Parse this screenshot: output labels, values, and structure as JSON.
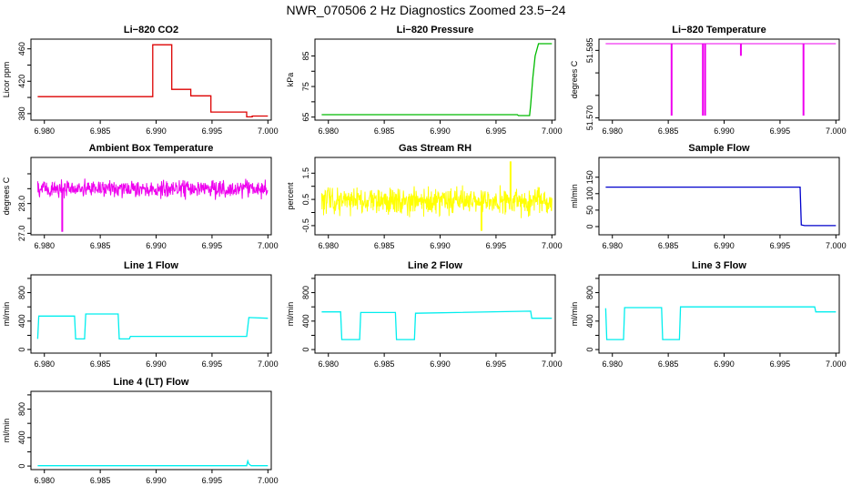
{
  "page_title": "NWR_070506  2 Hz Diagnostics Zoomed 23.5−24",
  "chart_data": [
    {
      "type": "line",
      "title": "Li−820 CO2",
      "xlabel": "",
      "ylabel": "Licor ppm",
      "color": "#dd0000",
      "xlim": [
        6.9788,
        7.0003
      ],
      "ylim": [
        372,
        472
      ],
      "xticks": [
        "6.980",
        "6.985",
        "6.990",
        "6.995",
        "7.000"
      ],
      "xtick_values": [
        6.98,
        6.985,
        6.99,
        6.995,
        7.0
      ],
      "yticks": [
        "380",
        "420",
        "460"
      ],
      "ytick_values": [
        380,
        420,
        460
      ],
      "yticks_minor": [
        "400",
        "440"
      ],
      "ytick_minor_values": [
        400,
        440
      ],
      "series": [
        {
          "x": [
            6.9794,
            6.9897,
            6.9897,
            6.9914,
            6.9914,
            6.9931,
            6.9931,
            6.9949,
            6.9949,
            6.9981,
            6.9981,
            6.9986,
            6.9986,
            7.0
          ],
          "y": [
            401,
            401,
            465,
            465,
            410,
            410,
            402,
            402,
            382,
            382,
            376,
            376,
            377,
            377
          ]
        }
      ]
    },
    {
      "type": "line",
      "title": "Li−820 Pressure",
      "xlabel": "",
      "ylabel": "kPa",
      "color": "#00bb00",
      "xlim": [
        6.9788,
        7.0003
      ],
      "ylim": [
        64,
        90.5
      ],
      "xticks": [
        "6.980",
        "6.985",
        "6.990",
        "6.995",
        "7.000"
      ],
      "xtick_values": [
        6.98,
        6.985,
        6.99,
        6.995,
        7.0
      ],
      "yticks": [
        "65",
        "75",
        "85"
      ],
      "ytick_values": [
        65,
        75,
        85
      ],
      "yticks_minor": [
        "70",
        "80"
      ],
      "ytick_minor_values": [
        70,
        80
      ],
      "series": [
        {
          "x": [
            6.9794,
            6.9969,
            6.997,
            6.998,
            6.9981,
            6.9983,
            6.9985,
            6.9988,
            7.0
          ],
          "y": [
            65.8,
            65.8,
            65.5,
            65.5,
            69,
            78,
            85,
            89,
            89
          ]
        }
      ]
    },
    {
      "type": "line",
      "title": "Li−820 Temperature",
      "xlabel": "",
      "ylabel": "degrees C",
      "color": "#ee00ee",
      "xlim": [
        6.9788,
        7.0003
      ],
      "ylim": [
        51.5695,
        51.5875
      ],
      "xticks": [
        "6.980",
        "6.985",
        "6.990",
        "6.995",
        "7.000"
      ],
      "xtick_values": [
        6.98,
        6.985,
        6.99,
        6.995,
        7.0
      ],
      "yticks": [
        "51.570",
        "51.585"
      ],
      "ytick_values": [
        51.57,
        51.585
      ],
      "yticks_minor": [
        "51.575",
        "51.580"
      ],
      "ytick_minor_values": [
        51.575,
        51.58
      ],
      "baseline": 51.5865,
      "spikes": [
        {
          "x": 6.9853,
          "y": 51.5705
        },
        {
          "x": 6.9881,
          "y": 51.5705
        },
        {
          "x": 6.9883,
          "y": 51.5705
        },
        {
          "x": 6.9915,
          "y": 51.5838
        },
        {
          "x": 6.9971,
          "y": 51.5705
        }
      ]
    },
    {
      "type": "line",
      "title": "Ambient Box Temperature",
      "xlabel": "",
      "ylabel": "degrees C",
      "color": "#ee00ee",
      "xlim": [
        6.9788,
        7.0003
      ],
      "ylim": [
        26.95,
        29.55
      ],
      "xticks": [
        "6.980",
        "6.985",
        "6.990",
        "6.995",
        "7.000"
      ],
      "xtick_values": [
        6.98,
        6.985,
        6.99,
        6.995,
        7.0
      ],
      "yticks": [
        "27.0",
        "28.0"
      ],
      "ytick_values": [
        27.0,
        28.0
      ],
      "yticks_minor": [
        "27.5",
        "28.5",
        "29.0"
      ],
      "ytick_minor_values": [
        27.5,
        28.5,
        29.0
      ],
      "noise": {
        "x_start": 6.9794,
        "x_end": 7.0,
        "mean": 28.5,
        "amplitude": 0.45
      },
      "spikes": [
        {
          "x": 6.9816,
          "y": 27.05
        }
      ]
    },
    {
      "type": "line",
      "title": "Gas Stream RH",
      "xlabel": "",
      "ylabel": "percent",
      "color": "#ffff00",
      "xlim": [
        6.9788,
        7.0003
      ],
      "ylim": [
        -0.85,
        2.1
      ],
      "xticks": [
        "6.980",
        "6.985",
        "6.990",
        "6.995",
        "7.000"
      ],
      "xtick_values": [
        6.98,
        6.985,
        6.99,
        6.995,
        7.0
      ],
      "yticks": [
        "-0.5",
        "0.5",
        "1.5"
      ],
      "ytick_values": [
        -0.5,
        0.5,
        1.5
      ],
      "yticks_minor": [
        "0.0",
        "1.0"
      ],
      "ytick_minor_values": [
        0.0,
        1.0
      ],
      "noise": {
        "x_start": 6.9794,
        "x_end": 7.0,
        "mean": 0.45,
        "amplitude": 0.75
      },
      "spikes": [
        {
          "x": 6.9963,
          "y": 1.95
        },
        {
          "x": 6.9937,
          "y": -0.7
        }
      ]
    },
    {
      "type": "line",
      "title": "Sample Flow",
      "xlabel": "",
      "ylabel": "ml/min",
      "color": "#0000cc",
      "xlim": [
        6.9788,
        7.0003
      ],
      "ylim": [
        -25,
        210
      ],
      "xticks": [
        "6.980",
        "6.985",
        "6.990",
        "6.995",
        "7.000"
      ],
      "xtick_values": [
        6.98,
        6.985,
        6.99,
        6.995,
        7.0
      ],
      "yticks": [
        "0",
        "50",
        "100",
        "150"
      ],
      "ytick_values": [
        0,
        50,
        100,
        150
      ],
      "yticks_minor": [],
      "ytick_minor_values": [],
      "series": [
        {
          "x": [
            6.9794,
            6.9968,
            6.9969,
            6.9972,
            7.0
          ],
          "y": [
            120,
            120,
            5,
            3,
            3
          ]
        }
      ]
    },
    {
      "type": "line",
      "title": "Line 1 Flow",
      "xlabel": "",
      "ylabel": "ml/min",
      "color": "#00eeee",
      "xlim": [
        6.9788,
        7.0003
      ],
      "ylim": [
        -50,
        1050
      ],
      "xticks": [
        "6.980",
        "6.985",
        "6.990",
        "6.995",
        "7.000"
      ],
      "xtick_values": [
        6.98,
        6.985,
        6.99,
        6.995,
        7.0
      ],
      "yticks": [
        "0",
        "400",
        "800"
      ],
      "ytick_values": [
        0,
        400,
        800
      ],
      "yticks_minor": [
        "200",
        "600",
        "1000"
      ],
      "ytick_minor_values": [
        200,
        600,
        1000
      ],
      "series": [
        {
          "x": [
            6.9794,
            6.9795,
            6.9827,
            6.9828,
            6.9836,
            6.9837,
            6.9866,
            6.9867,
            6.9876,
            6.9877,
            6.9981,
            6.9983,
            7.0
          ],
          "y": [
            150,
            470,
            470,
            150,
            150,
            500,
            500,
            150,
            150,
            185,
            185,
            450,
            440
          ]
        }
      ]
    },
    {
      "type": "line",
      "title": "Line 2 Flow",
      "xlabel": "",
      "ylabel": "ml/min",
      "color": "#00eeee",
      "xlim": [
        6.9788,
        7.0003
      ],
      "ylim": [
        -50,
        1050
      ],
      "xticks": [
        "6.980",
        "6.985",
        "6.990",
        "6.995",
        "7.000"
      ],
      "xtick_values": [
        6.98,
        6.985,
        6.99,
        6.995,
        7.0
      ],
      "yticks": [
        "0",
        "400",
        "800"
      ],
      "ytick_values": [
        0,
        400,
        800
      ],
      "yticks_minor": [
        "200",
        "600",
        "1000"
      ],
      "ytick_minor_values": [
        200,
        600,
        1000
      ],
      "series": [
        {
          "x": [
            6.9794,
            6.9811,
            6.9812,
            6.9828,
            6.9829,
            6.986,
            6.9861,
            6.9877,
            6.9878,
            6.9981,
            6.9982,
            7.0
          ],
          "y": [
            530,
            530,
            140,
            140,
            520,
            520,
            140,
            140,
            510,
            540,
            440,
            440
          ]
        }
      ]
    },
    {
      "type": "line",
      "title": "Line 3 Flow",
      "xlabel": "",
      "ylabel": "ml/min",
      "color": "#00eeee",
      "xlim": [
        6.9788,
        7.0003
      ],
      "ylim": [
        -50,
        1050
      ],
      "xticks": [
        "6.980",
        "6.985",
        "6.990",
        "6.995",
        "7.000"
      ],
      "xtick_values": [
        6.98,
        6.985,
        6.99,
        6.995,
        7.0
      ],
      "yticks": [
        "0",
        "400",
        "800"
      ],
      "ytick_values": [
        0,
        400,
        800
      ],
      "yticks_minor": [
        "200",
        "600",
        "1000"
      ],
      "ytick_minor_values": [
        200,
        600,
        1000
      ],
      "series": [
        {
          "x": [
            6.9794,
            6.9795,
            6.981,
            6.9811,
            6.9844,
            6.9845,
            6.986,
            6.9861,
            6.9981,
            6.9982,
            7.0
          ],
          "y": [
            580,
            140,
            140,
            590,
            590,
            140,
            140,
            600,
            600,
            530,
            530
          ]
        }
      ]
    },
    {
      "type": "line",
      "title": "Line 4 (LT) Flow",
      "xlabel": "",
      "ylabel": "ml/min",
      "color": "#00eeee",
      "xlim": [
        6.9788,
        7.0003
      ],
      "ylim": [
        -50,
        1050
      ],
      "xticks": [
        "6.980",
        "6.985",
        "6.990",
        "6.995",
        "7.000"
      ],
      "xtick_values": [
        6.98,
        6.985,
        6.99,
        6.995,
        7.0
      ],
      "yticks": [
        "0",
        "400",
        "800"
      ],
      "ytick_values": [
        0,
        400,
        800
      ],
      "yticks_minor": [
        "200",
        "600",
        "1000"
      ],
      "ytick_minor_values": [
        200,
        600,
        1000
      ],
      "series": [
        {
          "x": [
            6.9794,
            6.9981,
            6.9982,
            6.9983,
            6.9985,
            7.0
          ],
          "y": [
            5,
            5,
            70,
            30,
            5,
            5
          ]
        }
      ]
    }
  ]
}
